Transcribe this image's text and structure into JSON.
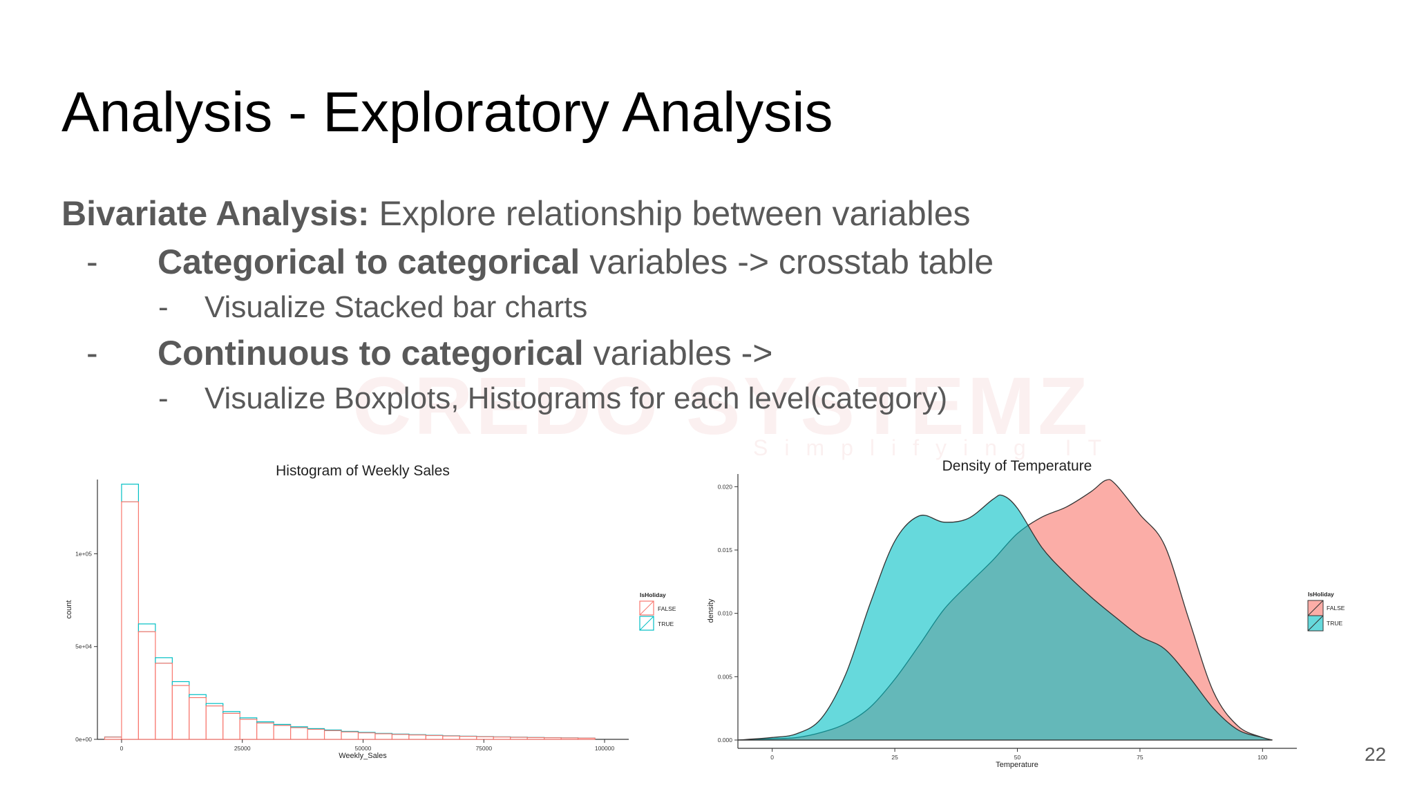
{
  "slide": {
    "title": "Analysis - Exploratory Analysis",
    "page_number": "22"
  },
  "body": {
    "heading_bold": "Bivariate Analysis:",
    "heading_rest": " Explore relationship between variables",
    "bullet1_bold": "Categorical to categorical",
    "bullet1_rest": " variables -> crosstab table",
    "bullet1_sub": "Visualize Stacked bar charts",
    "bullet2_bold": "Continuous to categorical",
    "bullet2_rest": " variables ->",
    "bullet2_sub": "Visualize Boxplots, Histograms for each level(category)",
    "dash": "-"
  },
  "watermark": {
    "text": "CREDO SYSTEMZ",
    "tagline": "Simplifying IT"
  },
  "colors": {
    "false_series": "#F8766D",
    "true_series": "#00BFC4"
  },
  "chart_data": [
    {
      "type": "bar",
      "title": "Histogram of Weekly Sales",
      "xlabel": "Weekly_Sales",
      "ylabel": "count",
      "x_ticks": [
        "0",
        "25000",
        "50000",
        "75000",
        "100000"
      ],
      "y_ticks": [
        "0e+00",
        "5e+04",
        "1e+05"
      ],
      "xlim": [
        -5000,
        105000
      ],
      "ylim": [
        0,
        140000
      ],
      "bin_width": 3500,
      "bin_centers": [
        -1750,
        1750,
        5250,
        8750,
        12250,
        15750,
        19250,
        22750,
        26250,
        29750,
        33250,
        36750,
        40250,
        43750,
        47250,
        50750,
        54250,
        57750,
        61250,
        64750,
        68250,
        71750,
        75250,
        78750,
        82250,
        85750,
        89250,
        92750,
        96250
      ],
      "legend_title": "IsHoliday",
      "legend_position": "right",
      "series": [
        {
          "name": "FALSE",
          "values": [
            1200,
            128000,
            58000,
            41000,
            29000,
            22500,
            18000,
            14000,
            10800,
            8800,
            7500,
            6300,
            5400,
            4700,
            4000,
            3500,
            3000,
            2650,
            2350,
            2050,
            1800,
            1600,
            1400,
            1250,
            1100,
            950,
            850,
            750,
            650
          ]
        },
        {
          "name": "TRUE",
          "values": [
            100,
            9500,
            4200,
            3000,
            2100,
            1600,
            1300,
            1000,
            800,
            650,
            550,
            470,
            400,
            350,
            300,
            260,
            220,
            200,
            175,
            150,
            135,
            120,
            105,
            95,
            85,
            72,
            65,
            56,
            50
          ]
        }
      ]
    },
    {
      "type": "area",
      "title": "Density of Temperature",
      "xlabel": "Temperature",
      "ylabel": "density",
      "x_ticks": [
        "0",
        "25",
        "50",
        "75",
        "100"
      ],
      "y_ticks": [
        "0.000",
        "0.005",
        "0.010",
        "0.015",
        "0.020"
      ],
      "xlim": [
        -7,
        107
      ],
      "ylim": [
        0,
        0.021
      ],
      "legend_title": "IsHoliday",
      "legend_position": "right",
      "series": [
        {
          "name": "FALSE",
          "x": [
            -7,
            0,
            5,
            10,
            15,
            20,
            25,
            30,
            35,
            40,
            45,
            50,
            55,
            60,
            65,
            68,
            70,
            75,
            80,
            85,
            90,
            95,
            100,
            102
          ],
          "y": [
            0,
            0.0001,
            0.0002,
            0.0006,
            0.0013,
            0.0026,
            0.0048,
            0.0075,
            0.0103,
            0.0123,
            0.0142,
            0.0163,
            0.0176,
            0.0184,
            0.0196,
            0.0205,
            0.0202,
            0.0178,
            0.0154,
            0.0095,
            0.0038,
            0.0011,
            0.0002,
            0
          ]
        },
        {
          "name": "TRUE",
          "x": [
            -7,
            0,
            5,
            10,
            15,
            20,
            25,
            30,
            35,
            40,
            45,
            47,
            50,
            55,
            60,
            65,
            70,
            75,
            80,
            85,
            90,
            95,
            100,
            102
          ],
          "y": [
            0,
            0.0002,
            0.0005,
            0.0017,
            0.0052,
            0.0108,
            0.0157,
            0.0177,
            0.0172,
            0.0175,
            0.019,
            0.0193,
            0.0183,
            0.0152,
            0.0131,
            0.0113,
            0.0097,
            0.0082,
            0.0072,
            0.005,
            0.0025,
            0.0008,
            0.0002,
            0
          ]
        }
      ]
    }
  ]
}
